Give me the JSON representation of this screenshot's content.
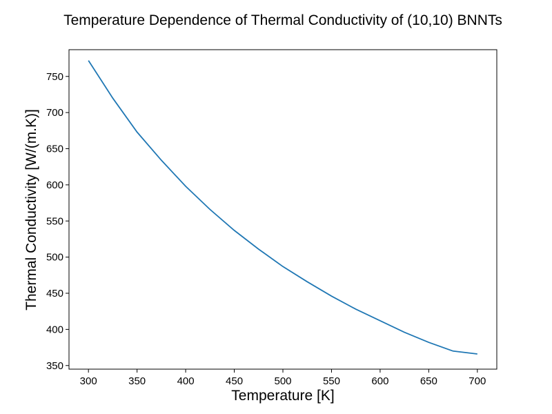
{
  "chart_data": {
    "type": "line",
    "title": "Temperature Dependence of Thermal Conductivity of (10,10) BNNTs",
    "xlabel": "Temperature [K]",
    "ylabel": "Thermal Conductivity [W/(m.K)]",
    "xlim": [
      280,
      720
    ],
    "ylim": [
      345,
      787
    ],
    "xticks": [
      300,
      350,
      400,
      450,
      500,
      550,
      600,
      650,
      700
    ],
    "yticks": [
      350,
      400,
      450,
      500,
      550,
      600,
      650,
      700,
      750
    ],
    "grid": false,
    "legend": "none",
    "series": [
      {
        "color": "#1f77b4",
        "x": [
          300,
          325,
          350,
          375,
          400,
          425,
          450,
          475,
          500,
          525,
          550,
          575,
          600,
          625,
          650,
          675,
          700
        ],
        "y": [
          772,
          720,
          673,
          634,
          598,
          566,
          537,
          511,
          487,
          466,
          446,
          428,
          412,
          396,
          382,
          370,
          366
        ]
      }
    ]
  }
}
